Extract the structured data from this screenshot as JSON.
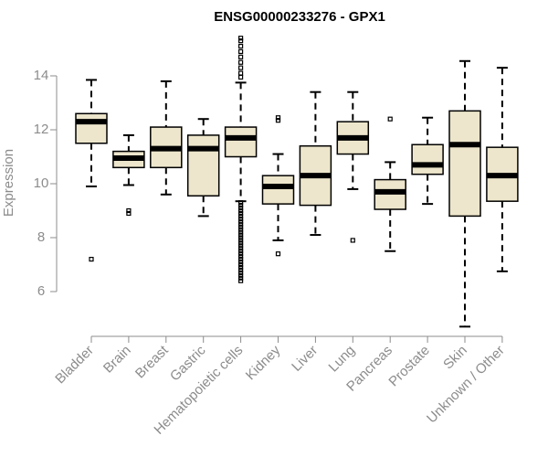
{
  "chart_data": {
    "type": "boxplot",
    "title": "ENSG00000233276 - GPX1",
    "xlabel": "",
    "ylabel": "Expression",
    "ylim": [
      4.5,
      15.5
    ],
    "yticks": [
      6,
      8,
      10,
      12,
      14
    ],
    "box_color": "#ede6cc",
    "median_color": "#000000",
    "axis_color": "#8c8c8c",
    "categories": [
      "Bladder",
      "Brain",
      "Breast",
      "Gastric",
      "Hematopoietic cells",
      "Kidney",
      "Liver",
      "Lung",
      "Pancreas",
      "Prostate",
      "Skin",
      "Unknown / Other"
    ],
    "series": [
      {
        "name": "Bladder",
        "whisker_low": 9.9,
        "q1": 11.5,
        "median": 12.3,
        "q3": 12.6,
        "whisker_high": 13.85,
        "outliers": [
          7.2
        ]
      },
      {
        "name": "Brain",
        "whisker_low": 9.95,
        "q1": 10.6,
        "median": 10.95,
        "q3": 11.2,
        "whisker_high": 11.8,
        "outliers": [
          9.0,
          8.9
        ]
      },
      {
        "name": "Breast",
        "whisker_low": 9.6,
        "q1": 10.6,
        "median": 11.3,
        "q3": 12.1,
        "whisker_high": 13.8,
        "outliers": []
      },
      {
        "name": "Gastric",
        "whisker_low": 8.8,
        "q1": 9.55,
        "median": 11.3,
        "q3": 11.8,
        "whisker_high": 12.4,
        "outliers": []
      },
      {
        "name": "Hematopoietic cells",
        "whisker_low": 9.35,
        "q1": 11.0,
        "median": 11.7,
        "q3": 12.1,
        "whisker_high": 13.75,
        "outliers": [
          15.4,
          15.3,
          15.1,
          14.9,
          14.7,
          14.5,
          14.3,
          14.1,
          13.95,
          9.3,
          9.2,
          9.1,
          9.0,
          8.9,
          8.8,
          8.7,
          8.6,
          8.5,
          8.4,
          8.3,
          8.2,
          8.1,
          8.0,
          7.9,
          7.8,
          7.7,
          7.6,
          7.5,
          7.4,
          7.3,
          7.2,
          7.1,
          7.0,
          6.9,
          6.8,
          6.7,
          6.6,
          6.5,
          6.4
        ]
      },
      {
        "name": "Kidney",
        "whisker_low": 7.9,
        "q1": 9.25,
        "median": 9.9,
        "q3": 10.3,
        "whisker_high": 11.1,
        "outliers": [
          12.45,
          12.35,
          7.4
        ]
      },
      {
        "name": "Liver",
        "whisker_low": 8.1,
        "q1": 9.2,
        "median": 10.3,
        "q3": 11.4,
        "whisker_high": 13.4,
        "outliers": []
      },
      {
        "name": "Lung",
        "whisker_low": 9.8,
        "q1": 11.1,
        "median": 11.7,
        "q3": 12.3,
        "whisker_high": 13.4,
        "outliers": [
          7.9
        ]
      },
      {
        "name": "Pancreas",
        "whisker_low": 7.5,
        "q1": 9.05,
        "median": 9.7,
        "q3": 10.15,
        "whisker_high": 10.8,
        "outliers": [
          12.4
        ]
      },
      {
        "name": "Prostate",
        "whisker_low": 9.25,
        "q1": 10.35,
        "median": 10.7,
        "q3": 11.45,
        "whisker_high": 12.45,
        "outliers": []
      },
      {
        "name": "Skin",
        "whisker_low": 4.7,
        "q1": 8.8,
        "median": 11.45,
        "q3": 12.7,
        "whisker_high": 14.55,
        "outliers": []
      },
      {
        "name": "Unknown / Other",
        "whisker_low": 6.75,
        "q1": 9.35,
        "median": 10.3,
        "q3": 11.35,
        "whisker_high": 14.3,
        "outliers": []
      }
    ]
  }
}
